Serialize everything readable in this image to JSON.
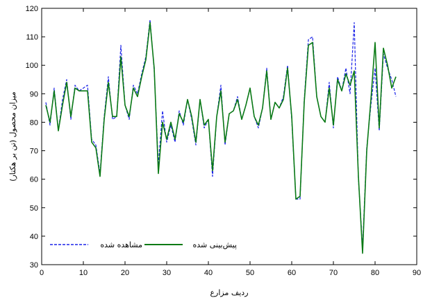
{
  "chart_data": {
    "type": "line",
    "xlabel": "ردیف مزارع",
    "ylabel": "میزان محصول (تن بر هکتار)",
    "xlim": [
      0,
      90
    ],
    "ylim": [
      30,
      120
    ],
    "xticks": [
      0,
      10,
      20,
      30,
      40,
      50,
      60,
      70,
      80,
      90
    ],
    "yticks": [
      30,
      40,
      50,
      60,
      70,
      80,
      90,
      100,
      110,
      120
    ],
    "grid": false,
    "legend_position": "bottom-left",
    "x": [
      1,
      2,
      3,
      4,
      5,
      6,
      7,
      8,
      9,
      10,
      11,
      12,
      13,
      14,
      15,
      16,
      17,
      18,
      19,
      20,
      21,
      22,
      23,
      24,
      25,
      26,
      27,
      28,
      29,
      30,
      31,
      32,
      33,
      34,
      35,
      36,
      37,
      38,
      39,
      40,
      41,
      42,
      43,
      44,
      45,
      46,
      47,
      48,
      49,
      50,
      51,
      52,
      53,
      54,
      55,
      56,
      57,
      58,
      59,
      60,
      61,
      62,
      63,
      64,
      65,
      66,
      67,
      68,
      69,
      70,
      71,
      72,
      73,
      74,
      75,
      76,
      77,
      78,
      79,
      80,
      81,
      82,
      83,
      84,
      85
    ],
    "series": [
      {
        "name": "مشاهده شده",
        "color": "#1a22e8",
        "style": "dashed",
        "values": [
          87,
          79,
          92,
          77,
          88,
          95,
          81,
          93,
          91,
          92,
          93,
          74,
          72,
          62,
          82,
          96,
          81,
          82,
          107,
          86,
          81,
          93,
          90,
          97,
          103,
          116,
          98,
          65,
          84,
          73,
          79,
          73,
          84,
          79,
          88,
          81,
          72,
          88,
          78,
          81,
          61,
          82,
          93,
          72,
          83,
          84,
          89,
          81,
          86,
          92,
          82,
          78,
          85,
          99,
          81,
          87,
          85,
          89,
          100,
          81,
          53,
          53,
          88,
          109,
          110,
          89,
          82,
          80,
          94,
          78,
          96,
          91,
          99,
          90,
          115,
          60,
          36,
          71,
          86,
          99,
          77,
          104,
          99,
          95,
          89
        ]
      },
      {
        "name": "پیش‌بینی شده",
        "color": "#0a7a14",
        "style": "solid",
        "values": [
          86,
          80,
          91,
          77,
          86,
          94,
          82,
          92,
          91,
          91,
          91,
          73,
          71,
          61,
          81,
          94,
          82,
          82,
          103,
          86,
          82,
          92,
          89,
          96,
          102,
          115,
          99,
          62,
          80,
          74,
          80,
          74,
          83,
          80,
          88,
          82,
          73,
          88,
          79,
          81,
          63,
          82,
          91,
          73,
          83,
          84,
          88,
          81,
          86,
          92,
          82,
          79,
          85,
          98,
          81,
          87,
          85,
          88,
          99,
          82,
          53,
          54,
          87,
          107,
          108,
          89,
          82,
          80,
          92,
          79,
          95,
          91,
          97,
          93,
          98,
          61,
          34,
          70,
          88,
          108,
          78,
          106,
          100,
          92,
          96
        ]
      }
    ]
  }
}
